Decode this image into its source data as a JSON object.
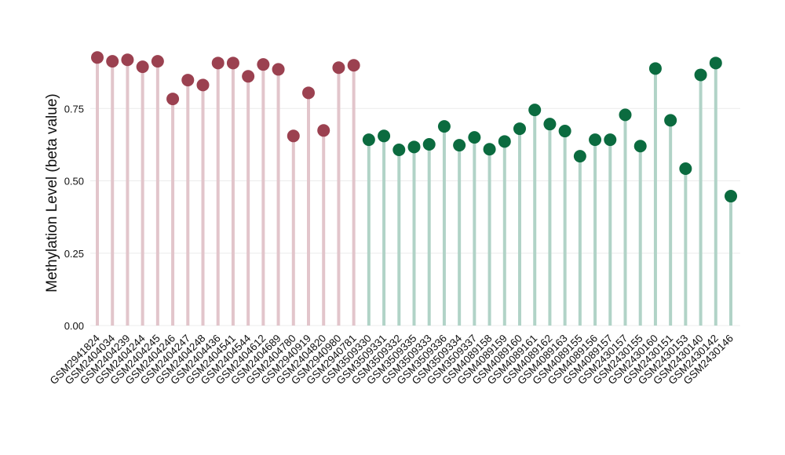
{
  "chart_data": {
    "type": "lollipop",
    "y_label": "Methylation Level (beta value)",
    "categories": [
      "GSM2941824",
      "GSM2404034",
      "GSM2404239",
      "GSM2404244",
      "GSM2404245",
      "GSM2404246",
      "GSM2404247",
      "GSM2404248",
      "GSM2404436",
      "GSM2404541",
      "GSM2404544",
      "GSM2404612",
      "GSM2404689",
      "GSM2404780",
      "GSM2940919",
      "GSM2404820",
      "GSM2940980",
      "GSM2940781",
      "GSM3509330",
      "GSM3509331",
      "GSM3509332",
      "GSM3509335",
      "GSM3509333",
      "GSM3509336",
      "GSM3509334",
      "GSM3509337",
      "GSM4089158",
      "GSM4089159",
      "GSM4089160",
      "GSM4089161",
      "GSM4089162",
      "GSM4089163",
      "GSM4089155",
      "GSM4089156",
      "GSM4089157",
      "GSM2430157",
      "GSM2430155",
      "GSM2430160",
      "GSM2430151",
      "GSM2430153",
      "GSM2430140",
      "GSM2430142",
      "GSM2430146"
    ],
    "series": [
      {
        "color": "#9b4150",
        "stem_color": "#e2c5cb",
        "values": [
          0.926,
          0.913,
          0.918,
          0.894,
          0.913,
          0.783,
          0.848,
          0.831,
          0.907,
          0.907,
          0.861,
          0.902,
          0.885,
          0.655,
          0.804,
          0.674,
          0.891,
          0.899,
          null,
          null,
          null,
          null,
          null,
          null,
          null,
          null,
          null,
          null,
          null,
          null,
          null,
          null,
          null,
          null,
          null,
          null,
          null,
          null,
          null,
          null,
          null,
          null,
          null
        ]
      },
      {
        "color": "#0b6b3f",
        "stem_color": "#b1d3c7",
        "values": [
          null,
          null,
          null,
          null,
          null,
          null,
          null,
          null,
          null,
          null,
          null,
          null,
          null,
          null,
          null,
          null,
          null,
          null,
          0.642,
          0.655,
          0.607,
          0.617,
          0.626,
          0.688,
          0.623,
          0.65,
          0.609,
          0.636,
          0.68,
          0.745,
          0.696,
          0.672,
          0.585,
          0.642,
          0.642,
          0.728,
          0.62,
          0.888,
          0.709,
          0.542,
          0.866,
          0.907,
          0.447
        ]
      }
    ],
    "ylim": [
      0,
      1.0
    ],
    "yticks": [
      {
        "value": 0,
        "label": "0.00"
      },
      {
        "value": 0.25,
        "label": "0.25"
      },
      {
        "value": 0.5,
        "label": "0.50"
      },
      {
        "value": 0.75,
        "label": "0.75"
      }
    ],
    "grid": true
  }
}
